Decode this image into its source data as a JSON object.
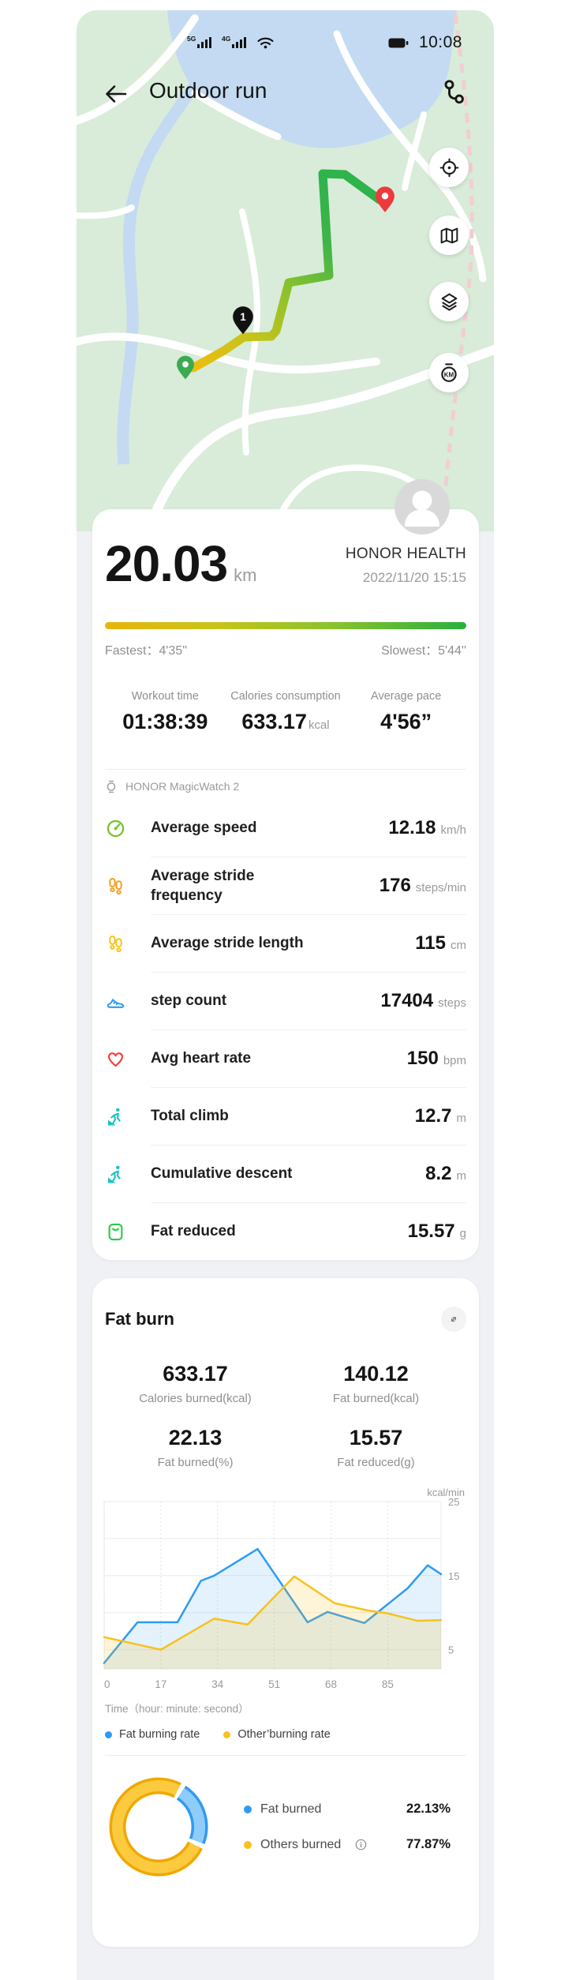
{
  "status_bar": {
    "time": "10:08",
    "network_badge_1": "5G",
    "network_badge_2": "4G"
  },
  "header": {
    "title": "Outdoor run"
  },
  "map": {
    "km_marker_label": "1",
    "km_button_label": "KM"
  },
  "summary": {
    "distance": "20.03",
    "distance_unit": "km",
    "brand": "HONOR HEALTH",
    "datetime": "2022/11/20 15:15",
    "fastest": "Fastest：4'35''",
    "slowest": "Slowest：5'44''"
  },
  "metrics": [
    {
      "label": "Workout time",
      "value": "01:38:39",
      "unit": ""
    },
    {
      "label": "Calories consumption",
      "value": "633.17",
      "unit": "kcal"
    },
    {
      "label": "Average pace",
      "value": "4'56”",
      "unit": ""
    }
  ],
  "device": {
    "name": "HONOR MagicWatch 2"
  },
  "stats": [
    {
      "icon": "speedometer-icon",
      "label": "Average speed",
      "value": "12.18",
      "unit": "km/h"
    },
    {
      "icon": "footprints-icon",
      "label": "Average stride frequency",
      "value": "176",
      "unit": "steps/min"
    },
    {
      "icon": "footprints-icon",
      "label": "Average stride length",
      "value": "115",
      "unit": "cm"
    },
    {
      "icon": "running-shoe-icon",
      "label": "step count",
      "value": "17404",
      "unit": "steps"
    },
    {
      "icon": "heart-icon",
      "label": "Avg heart rate",
      "value": "150",
      "unit": "bpm"
    },
    {
      "icon": "climber-icon",
      "label": "Total climb",
      "value": "12.7",
      "unit": "m"
    },
    {
      "icon": "climber-icon",
      "label": "Cumulative descent",
      "value": "8.2",
      "unit": "m"
    },
    {
      "icon": "body-scale-icon",
      "label": "Fat reduced",
      "value": "15.57",
      "unit": "g"
    }
  ],
  "fat_burn": {
    "title": "Fat burn",
    "stats": [
      {
        "value": "633.17",
        "label": "Calories burned(kcal)"
      },
      {
        "value": "140.12",
        "label": "Fat burned(kcal)"
      },
      {
        "value": "22.13",
        "label": "Fat burned(%)"
      },
      {
        "value": "15.57",
        "label": "Fat reduced(g)"
      }
    ],
    "breakdown": [
      {
        "label": "Fat burned",
        "value": "22.13%"
      },
      {
        "label": "Others burned",
        "value": "77.87%"
      }
    ]
  },
  "colors": {
    "accent_blue": "#2e9bf2",
    "accent_yellow": "#f7c21f",
    "route_start_yellow": "#eebe0e",
    "route_end_green": "#2fb34b",
    "heart_red": "#f43b3b",
    "climb_teal": "#1fc2c4",
    "stride_orange": "#f6a021",
    "stride_gold": "#f7c41d",
    "scale_green": "#2cc84d",
    "speed_green": "#76c12b"
  },
  "chart_data": [
    {
      "type": "area",
      "title": "Fat burn rate over time",
      "ylabel": "kcal/min",
      "xlabel": "Time（hour: minute: second）",
      "ylim": [
        0,
        25
      ],
      "yticks": [
        25,
        15,
        5
      ],
      "gridlines_y": [
        25,
        20,
        15,
        10,
        5
      ],
      "xticks": [
        0,
        17,
        34,
        51,
        68,
        85
      ],
      "x_max": 101,
      "grid": true,
      "legend_position": "bottom",
      "series": [
        {
          "name": "Fat burning rate",
          "color": "#2e9bf2",
          "fill": "rgba(46,155,242,0.13)",
          "points": [
            [
              0,
              3.2
            ],
            [
              10,
              8.7
            ],
            [
              22,
              8.7
            ],
            [
              29,
              14.3
            ],
            [
              33,
              15.0
            ],
            [
              46,
              18.6
            ],
            [
              61,
              8.7
            ],
            [
              67,
              10.1
            ],
            [
              78,
              8.6
            ],
            [
              91,
              13.3
            ],
            [
              97,
              16.4
            ],
            [
              101,
              15.2
            ]
          ]
        },
        {
          "name": "Other’burning rate",
          "color": "#f7c21f",
          "fill": "rgba(247,194,31,0.18)",
          "points": [
            [
              0,
              6.7
            ],
            [
              17,
              5.0
            ],
            [
              33,
              9.2
            ],
            [
              43,
              8.4
            ],
            [
              57,
              14.9
            ],
            [
              69,
              11.3
            ],
            [
              79,
              10.3
            ],
            [
              85,
              9.9
            ],
            [
              94,
              8.9
            ],
            [
              101,
              9.0
            ]
          ]
        }
      ]
    },
    {
      "type": "pie",
      "title": "Fat burned share",
      "donut": true,
      "slices": [
        {
          "label": "Fat burned",
          "value": 22.13,
          "color": "#8fccf9",
          "border": "#2e9bf2"
        },
        {
          "label": "Others burned",
          "value": 77.87,
          "color": "#fcca3f",
          "border": "#f0a800"
        }
      ],
      "legend_position": "right"
    }
  ]
}
